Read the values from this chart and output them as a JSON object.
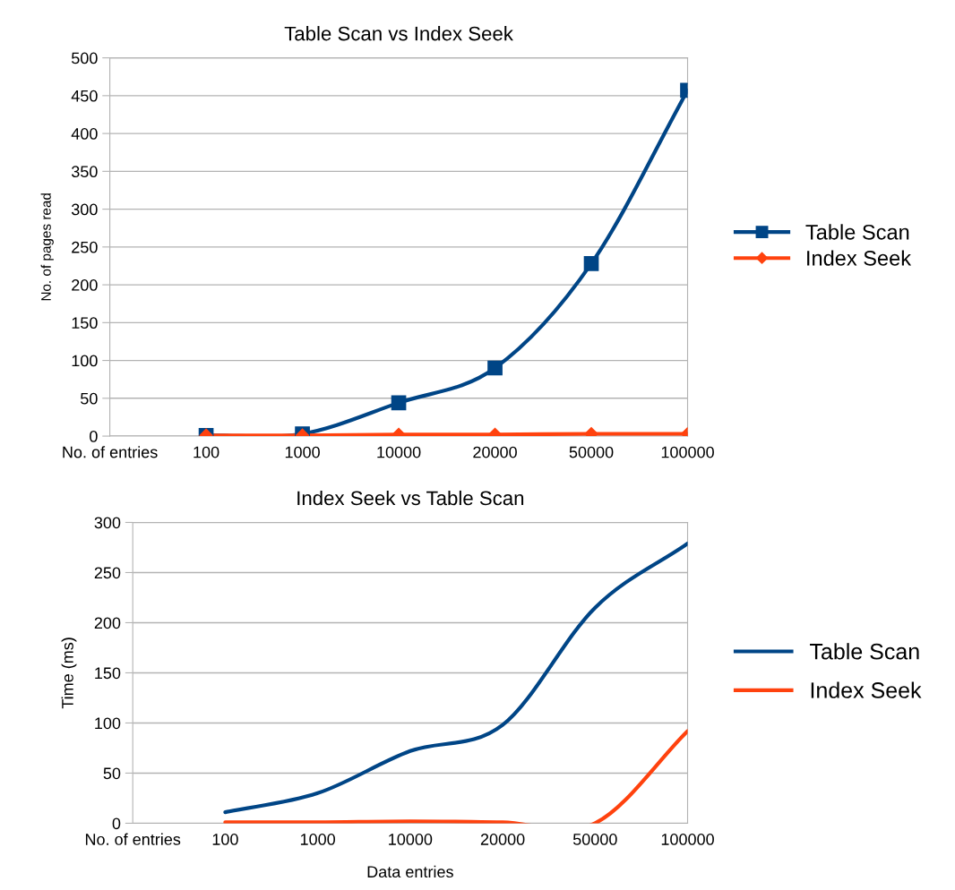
{
  "chart_data": [
    {
      "type": "line",
      "title": "Table Scan vs Index Seek",
      "ylabel": "No. of pages read",
      "categories": [
        "No. of entries",
        "100",
        "1000",
        "10000",
        "20000",
        "50000",
        "100000"
      ],
      "series": [
        {
          "name": "Table Scan",
          "color": "#004586",
          "marker": "square",
          "values": [
            null,
            1,
            3,
            44,
            90,
            228,
            457
          ]
        },
        {
          "name": "Index Seek",
          "color": "#ff420e",
          "marker": "diamond",
          "values": [
            null,
            1,
            1,
            2,
            2,
            3,
            3
          ]
        }
      ],
      "ylim": [
        0,
        500
      ],
      "yticks": [
        0,
        50,
        100,
        150,
        200,
        250,
        300,
        350,
        400,
        450,
        500
      ],
      "grid": "y",
      "legend": "right"
    },
    {
      "type": "line",
      "title": "Index Seek vs Table Scan",
      "ylabel": "Time (ms)",
      "xlabel": "Data entries",
      "categories": [
        "No. of entries",
        "100",
        "1000",
        "10000",
        "20000",
        "50000",
        "100000"
      ],
      "series": [
        {
          "name": "Table Scan",
          "color": "#004586",
          "values": [
            null,
            11,
            30,
            72,
            98,
            215,
            279
          ]
        },
        {
          "name": "Index Seek",
          "color": "#ff420e",
          "values": [
            null,
            1,
            1,
            2,
            1,
            0,
            92
          ]
        }
      ],
      "ylim": [
        0,
        300
      ],
      "yticks": [
        0,
        50,
        100,
        150,
        200,
        250,
        300
      ],
      "grid": "y",
      "legend": "right",
      "marker": "none"
    }
  ]
}
